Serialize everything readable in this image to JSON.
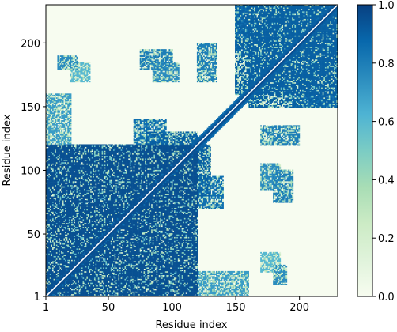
{
  "chart_data": {
    "type": "heatmap",
    "title": "",
    "xlabel": "Residue index",
    "ylabel": "Residue index",
    "n_residues": 230,
    "x_ticks": [
      1,
      50,
      100,
      150,
      200
    ],
    "y_ticks": [
      1,
      50,
      100,
      150,
      200
    ],
    "xlim": [
      1,
      230
    ],
    "ylim": [
      1,
      230
    ],
    "colorbar": {
      "min": 0.0,
      "max": 1.0,
      "ticks": [
        "0.0",
        "0.2",
        "0.4",
        "0.6",
        "0.8",
        "1.0"
      ],
      "colormap": "GnBu",
      "colors": [
        "#f7fcf0",
        "#e0f3db",
        "#ccebc5",
        "#a8ddb5",
        "#7bccc4",
        "#4eb3d3",
        "#2b8cbe",
        "#0868ac",
        "#084081"
      ]
    },
    "diagonal_color": "#ffffff",
    "contact_blocks": [
      {
        "x": [
          1,
          120
        ],
        "y": [
          1,
          120
        ],
        "value": 0.95
      },
      {
        "x": [
          1,
          45
        ],
        "y": [
          1,
          45
        ],
        "value": 0.9
      },
      {
        "x": [
          60,
          100
        ],
        "y": [
          60,
          100
        ],
        "value": 0.9
      },
      {
        "x": [
          5,
          25
        ],
        "y": [
          95,
          110
        ],
        "value": 0.85
      },
      {
        "x": [
          5,
          40
        ],
        "y": [
          50,
          85
        ],
        "value": 0.85
      },
      {
        "x": [
          95,
          130
        ],
        "y": [
          80,
          120
        ],
        "value": 0.9
      },
      {
        "x": [
          70,
          95
        ],
        "y": [
          110,
          140
        ],
        "value": 0.85
      },
      {
        "x": [
          100,
          160
        ],
        "y": [
          1,
          20
        ],
        "value": 0.7
      },
      {
        "x": [
          160,
          230
        ],
        "y": [
          150,
          230
        ],
        "value": 0.9
      },
      {
        "x": [
          150,
          230
        ],
        "y": [
          195,
          230
        ],
        "value": 0.85
      },
      {
        "x": [
          10,
          25
        ],
        "y": [
          180,
          190
        ],
        "value": 0.75
      },
      {
        "x": [
          75,
          100
        ],
        "y": [
          180,
          195
        ],
        "value": 0.8
      },
      {
        "x": [
          120,
          135
        ],
        "y": [
          170,
          200
        ],
        "value": 0.8
      },
      {
        "x": [
          170,
          185
        ],
        "y": [
          85,
          105
        ],
        "value": 0.75
      },
      {
        "x": [
          170,
          185
        ],
        "y": [
          20,
          35
        ],
        "value": 0.6
      },
      {
        "x": [
          230,
          230
        ],
        "y": [
          230,
          230
        ],
        "value": 0.0
      }
    ]
  }
}
